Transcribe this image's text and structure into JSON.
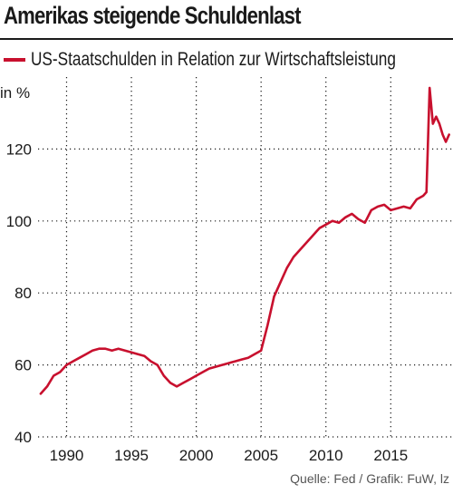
{
  "header": {
    "title": "Amerikas steigende Schuldenlast"
  },
  "footer": {
    "source": "Quelle: Fed / Grafik: FuW, lz"
  },
  "chart_data": {
    "type": "line",
    "title": "Amerikas steigende Schuldenlast",
    "ylabel": "in %",
    "xlim": [
      1987.8,
      2019.8
    ],
    "ylim": [
      40,
      140
    ],
    "xticks": [
      1990,
      1995,
      2000,
      2005,
      2010,
      2015
    ],
    "yticks": [
      40,
      60,
      80,
      100,
      120
    ],
    "grid": true,
    "legend_position": "top-left",
    "colors": {
      "series": "#c8102e",
      "grid": "#1a1a1a"
    },
    "series": [
      {
        "name": "US-Staatschulden in Relation zur Wirtschaftsleistung",
        "x": [
          1988.0,
          1988.5,
          1989.0,
          1989.5,
          1990.0,
          1990.5,
          1991.0,
          1991.5,
          1992.0,
          1992.5,
          1993.0,
          1993.5,
          1994.0,
          1994.5,
          1995.0,
          1995.5,
          1996.0,
          1996.5,
          1997.0,
          1997.5,
          1998.0,
          1998.5,
          1999.0,
          1999.5,
          2000.0,
          2000.5,
          2001.0,
          2001.5,
          2002.0,
          2002.5,
          2003.0,
          2003.5,
          2004.0,
          2004.5,
          2005.0,
          2005.5,
          2006.0,
          2006.5,
          2007.0,
          2007.5,
          2008.0,
          2008.5,
          2009.0,
          2009.5,
          2010.0,
          2010.5,
          2011.0,
          2011.5,
          2012.0,
          2012.5,
          2013.0,
          2013.5,
          2014.0,
          2014.5,
          2015.0,
          2015.5,
          2016.0,
          2016.5,
          2017.0,
          2017.5,
          2017.75,
          2018.0,
          2018.25,
          2018.5,
          2018.75,
          2019.0,
          2019.25,
          2019.5
        ],
        "values": [
          52,
          54,
          57,
          58,
          60,
          61,
          62,
          63,
          64,
          64.5,
          64.5,
          64,
          64.5,
          64,
          63.5,
          63,
          62.5,
          61,
          60,
          57,
          55,
          54,
          55,
          56,
          57,
          58,
          59,
          59.5,
          60,
          60.5,
          61,
          61.5,
          62,
          63,
          64,
          71,
          79,
          83,
          87,
          90,
          92,
          94,
          96,
          98,
          99,
          100,
          99.5,
          101,
          102,
          100.5,
          99.5,
          103,
          104,
          104.5,
          103,
          103.5,
          104,
          103.5,
          106,
          107,
          108,
          137,
          127,
          129,
          127,
          124,
          122,
          124
        ]
      }
    ]
  }
}
